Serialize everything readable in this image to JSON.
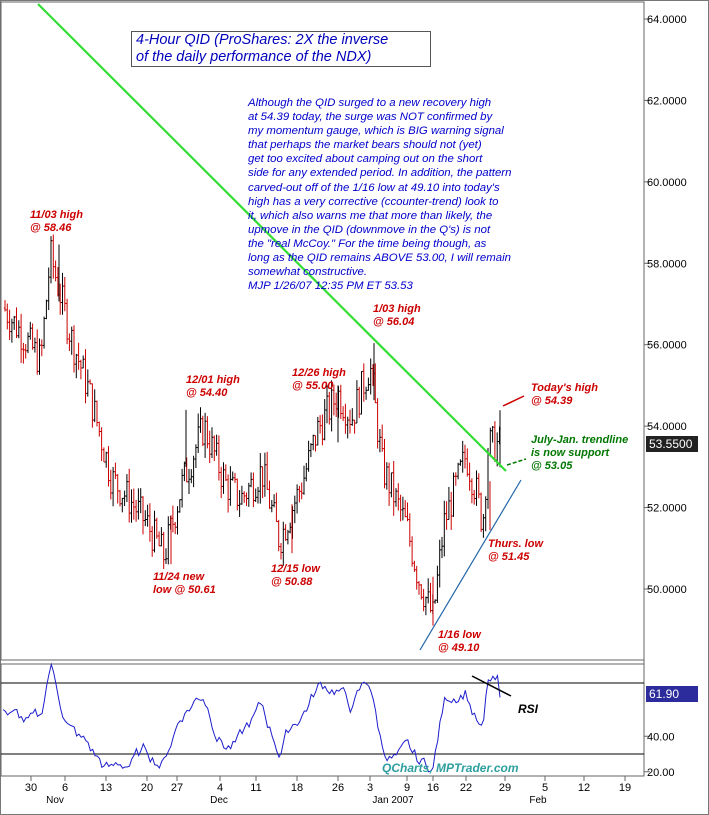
{
  "title": {
    "line1": "4-Hour QID (ProShares: 2X the inverse",
    "line2": "of the daily performance of the NDX)"
  },
  "commentary": "Although the QID surged to a new recovery high\nat 54.39 today, the surge was NOT confirmed by\nmy momentum gauge, which is BIG warning signal\nthat perhaps the market bears should not (yet)\nget too excited about camping out on the short\nside for any extended period. In addition, the pattern\ncarved-out off of the 1/16 low at 49.10 into today's\nhigh has a very corrective (ccounter-trend) look to\nit, which also warns me that more than likely, the\nupmove in the QID (downmove in the Q's) is not\nthe \"real McCoy.\" For the time being though, as\nlong as the QID remains ABOVE 53.00, I will remain\nsomewhat constructive.\nMJP 1/26/07 12:35 PM ET 53.53",
  "watermark": "QCharts, MPTrader.com",
  "last_price": "53.5500",
  "rsi_last": "61.90",
  "rsi_label": "RSI",
  "colors": {
    "up": "#000000",
    "down": "#cc0000",
    "trendline": "#33dd33",
    "support": "#2266aa",
    "annotation": "#cc0000",
    "green_annotation": "#007700",
    "text_blue": "#0000cc"
  },
  "chart_data": [
    {
      "type": "candlestick-bar",
      "title": "4-Hour QID (ProShares: 2X the inverse of the daily performance of the NDX)",
      "ylim": [
        48.2,
        64.3
      ],
      "y_ticks": [
        "64.0000",
        "62.0000",
        "60.0000",
        "58.0000",
        "56.0000",
        "54.0000",
        "52.0000",
        "50.0000"
      ],
      "x_day_ticks": [
        "30",
        "6",
        "13",
        "20",
        "27",
        "4",
        "11",
        "18",
        "26",
        "3",
        "9",
        "16",
        "22",
        "29",
        "5",
        "12",
        "19"
      ],
      "x_month_labels": [
        "Nov",
        "Dec",
        "Jan 2007",
        "Feb"
      ],
      "close_path": [
        {
          "date": "10/30",
          "value": 56.9
        },
        {
          "date": "11/01",
          "value": 55.6
        },
        {
          "date": "11/03",
          "value": 58.2
        },
        {
          "date": "11/07",
          "value": 56.2
        },
        {
          "date": "11/10",
          "value": 54.9
        },
        {
          "date": "11/14",
          "value": 52.7
        },
        {
          "date": "11/17",
          "value": 52.2
        },
        {
          "date": "11/20",
          "value": 51.6
        },
        {
          "date": "11/24",
          "value": 50.8
        },
        {
          "date": "11/28",
          "value": 52.6
        },
        {
          "date": "12/01",
          "value": 54.0
        },
        {
          "date": "12/05",
          "value": 52.6
        },
        {
          "date": "12/08",
          "value": 52.2
        },
        {
          "date": "12/12",
          "value": 52.9
        },
        {
          "date": "12/15",
          "value": 51.2
        },
        {
          "date": "12/19",
          "value": 52.6
        },
        {
          "date": "12/22",
          "value": 53.9
        },
        {
          "date": "12/26",
          "value": 54.8
        },
        {
          "date": "12/29",
          "value": 54.2
        },
        {
          "date": "1/03",
          "value": 55.5
        },
        {
          "date": "1/05",
          "value": 53.0
        },
        {
          "date": "1/09",
          "value": 51.5
        },
        {
          "date": "1/12",
          "value": 50.3
        },
        {
          "date": "1/16",
          "value": 49.3
        },
        {
          "date": "1/18",
          "value": 51.6
        },
        {
          "date": "1/22",
          "value": 53.3
        },
        {
          "date": "1/24",
          "value": 52.3
        },
        {
          "date": "1/25",
          "value": 51.6
        },
        {
          "date": "1/26",
          "value": 53.55
        }
      ],
      "annotations": [
        {
          "lines": [
            "11/03 high",
            "@ 58.46"
          ],
          "value": 58.46,
          "color": "red"
        },
        {
          "lines": [
            "12/01 high",
            "@ 54.40"
          ],
          "value": 54.4,
          "color": "red"
        },
        {
          "lines": [
            "12/26 high",
            "@ 55.00"
          ],
          "value": 55.0,
          "color": "red"
        },
        {
          "lines": [
            "1/03 high",
            "@ 56.04"
          ],
          "value": 56.04,
          "color": "red"
        },
        {
          "lines": [
            "Today's high",
            "@ 54.39"
          ],
          "value": 54.39,
          "color": "red"
        },
        {
          "lines": [
            "July-Jan. trendline",
            "is now support",
            "@ 53.05"
          ],
          "value": 53.05,
          "color": "green"
        },
        {
          "lines": [
            "Thurs. low",
            "@ 51.45"
          ],
          "value": 51.45,
          "color": "red"
        },
        {
          "lines": [
            "1/16 low",
            "@ 49.10"
          ],
          "value": 49.1,
          "color": "red"
        },
        {
          "lines": [
            "12/15 low",
            "@ 50.88"
          ],
          "value": 50.88,
          "color": "red"
        },
        {
          "lines": [
            "11/24 new",
            "low @ 50.61"
          ],
          "value": 50.61,
          "color": "red"
        }
      ]
    },
    {
      "type": "line",
      "title": "RSI",
      "ylim": [
        18,
        90
      ],
      "y_ticks": [
        "40.00",
        "20.00"
      ],
      "reference_lines": [
        30,
        70
      ],
      "last_value": 61.9
    }
  ]
}
